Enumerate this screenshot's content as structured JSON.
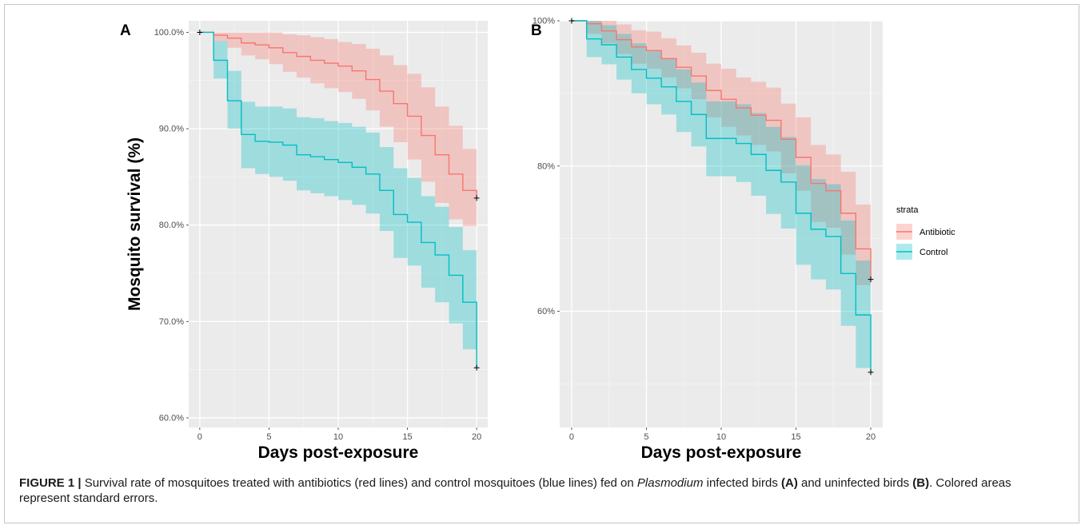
{
  "chart_data": [
    {
      "panel": "A",
      "type": "line",
      "step": true,
      "with_error_band": true,
      "xlabel": "Days post-exposure",
      "ylabel": "Mosquito survival (%)",
      "xlim": [
        -0.8,
        20.8
      ],
      "ylim": [
        59.0,
        101.2
      ],
      "x_ticks": [
        0,
        5,
        10,
        15,
        20
      ],
      "y_ticks": [
        60,
        70,
        80,
        90,
        100
      ],
      "y_tick_labels": [
        "60.0%",
        "70.0%",
        "80.0%",
        "90.0%",
        "100.0%"
      ],
      "grid": true,
      "series": [
        {
          "name": "Antibiotic",
          "color": "#f8766d",
          "x": [
            0,
            1,
            2,
            3,
            4,
            5,
            6,
            7,
            8,
            9,
            10,
            11,
            12,
            13,
            14,
            15,
            16,
            17,
            18,
            19,
            20
          ],
          "y": [
            100,
            99.7,
            99.4,
            98.9,
            98.7,
            98.4,
            97.9,
            97.5,
            97.1,
            96.8,
            96.5,
            96.0,
            95.1,
            93.9,
            92.6,
            91.3,
            89.3,
            87.3,
            85.3,
            83.6,
            82.8
          ],
          "lower": [
            100,
            99.1,
            98.4,
            97.6,
            97.2,
            96.7,
            95.9,
            95.3,
            94.7,
            94.2,
            93.8,
            93.1,
            91.9,
            90.2,
            88.6,
            86.8,
            84.5,
            82.3,
            80.6,
            79.9,
            79.9
          ],
          "upper": [
            100,
            100,
            100,
            100,
            100,
            100,
            99.8,
            99.7,
            99.5,
            99.3,
            99.0,
            98.8,
            98.3,
            97.6,
            96.6,
            95.7,
            94.3,
            92.3,
            90.3,
            87.9,
            87.9
          ]
        },
        {
          "name": "Control",
          "color": "#00bfc4",
          "x": [
            0,
            1,
            2,
            3,
            4,
            5,
            6,
            7,
            8,
            9,
            10,
            11,
            12,
            13,
            14,
            15,
            16,
            17,
            18,
            19,
            20
          ],
          "y": [
            100,
            97.1,
            92.9,
            89.4,
            88.7,
            88.6,
            88.3,
            87.3,
            87.1,
            86.8,
            86.5,
            86.0,
            85.3,
            83.6,
            81.1,
            80.3,
            78.2,
            76.9,
            74.8,
            72.0,
            65.2
          ],
          "lower": [
            100,
            95.2,
            90.0,
            85.9,
            85.3,
            85.0,
            84.6,
            83.6,
            83.3,
            83.0,
            82.6,
            82.1,
            81.2,
            79.4,
            76.6,
            75.8,
            73.5,
            72.0,
            69.8,
            67.1,
            67.1
          ],
          "upper": [
            100,
            99.1,
            96.0,
            92.8,
            92.3,
            92.3,
            92.1,
            91.2,
            91.1,
            90.8,
            90.6,
            90.2,
            89.6,
            88.1,
            85.9,
            84.9,
            83.0,
            81.9,
            79.8,
            77.4,
            77.4
          ]
        }
      ]
    },
    {
      "panel": "B",
      "type": "line",
      "step": true,
      "with_error_band": true,
      "xlabel": "Days post-exposure",
      "xlim": [
        -0.8,
        20.8
      ],
      "ylim": [
        44.0,
        100.0
      ],
      "x_ticks": [
        0,
        5,
        10,
        15,
        20
      ],
      "y_ticks": [
        60,
        80,
        100
      ],
      "y_tick_labels": [
        "60%",
        "80%",
        "100%"
      ],
      "grid": true,
      "legend_position": "right",
      "legend_title": "strata",
      "series": [
        {
          "name": "Antibiotic",
          "color": "#f8766d",
          "x": [
            0,
            1,
            2,
            3,
            4,
            5,
            6,
            7,
            8,
            9,
            10,
            11,
            12,
            13,
            14,
            15,
            16,
            17,
            18,
            19,
            20
          ],
          "y": [
            100,
            99.6,
            98.6,
            97.4,
            96.4,
            95.9,
            94.8,
            93.6,
            92.4,
            90.4,
            89.2,
            88.0,
            87.0,
            86.3,
            83.7,
            81.2,
            77.6,
            76.6,
            73.5,
            68.6,
            64.4
          ],
          "lower": [
            100,
            98.2,
            96.9,
            95.4,
            94.1,
            93.4,
            92.2,
            90.7,
            89.2,
            86.7,
            85.4,
            84.2,
            82.9,
            82.0,
            79.0,
            76.6,
            72.3,
            71.5,
            67.8,
            63.6,
            63.6
          ],
          "upper": [
            100,
            100,
            100,
            99.5,
            98.7,
            98.5,
            97.6,
            96.6,
            95.6,
            94.1,
            93.4,
            92.2,
            91.6,
            90.8,
            88.6,
            86.7,
            82.9,
            81.6,
            79.2,
            74.7,
            74.7
          ]
        },
        {
          "name": "Control",
          "color": "#00bfc4",
          "x": [
            0,
            1,
            2,
            3,
            4,
            5,
            6,
            7,
            8,
            9,
            10,
            11,
            12,
            13,
            14,
            15,
            16,
            17,
            18,
            19,
            20
          ],
          "y": [
            100,
            97.5,
            96.7,
            95.0,
            93.3,
            92.1,
            90.9,
            88.9,
            87.1,
            83.8,
            83.8,
            83.1,
            81.6,
            79.4,
            77.8,
            73.5,
            71.3,
            70.3,
            65.2,
            59.5,
            51.6
          ],
          "lower": [
            100,
            95.0,
            94.0,
            91.9,
            90.0,
            88.5,
            87.1,
            84.7,
            82.7,
            78.6,
            78.6,
            77.8,
            75.9,
            73.4,
            71.4,
            66.4,
            64.4,
            63.0,
            58.0,
            52.2,
            52.2
          ],
          "upper": [
            100,
            100,
            99.4,
            98.2,
            96.9,
            95.8,
            94.8,
            93.3,
            91.5,
            88.9,
            88.9,
            88.5,
            87.3,
            85.4,
            84.0,
            80.1,
            78.2,
            77.5,
            72.5,
            67.0,
            67.0
          ]
        }
      ]
    }
  ],
  "panels": {
    "a": {
      "letter": "A"
    },
    "b": {
      "letter": "B"
    }
  },
  "legend": {
    "title": "strata",
    "items": [
      {
        "label": "Antibiotic",
        "color": "#f8766d"
      },
      {
        "label": "Control",
        "color": "#00bfc4"
      }
    ]
  },
  "caption": {
    "figure_label": "FIGURE 1 |",
    "text_1": " Survival rate of mosquitoes treated with antibiotics (red lines) and control mosquitoes (blue lines) fed on ",
    "genus": "Plasmodium",
    "text_2": " infected birds ",
    "ref_a": "(A)",
    "text_3": " and uninfected birds ",
    "ref_b": "(B)",
    "text_4": ". Colored areas represent standard errors."
  }
}
